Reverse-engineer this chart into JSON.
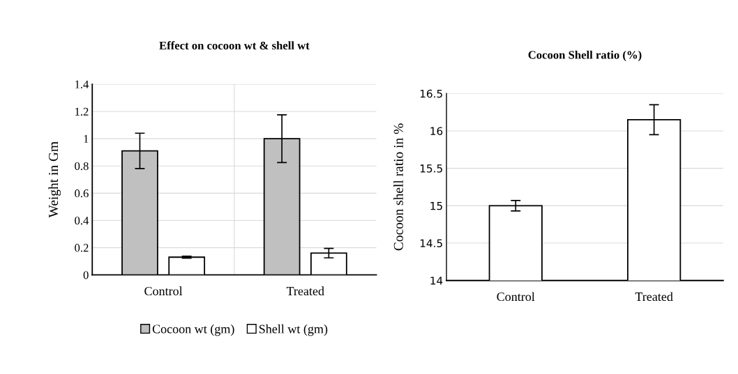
{
  "chart_data": [
    {
      "type": "bar",
      "title": "Effect on cocoon wt & shell wt",
      "ylabel": "Weight in Gm",
      "categories": [
        "Control",
        "Treated"
      ],
      "series": [
        {
          "name": "Cocoon wt (gm)",
          "color": "#c0c0c0",
          "values": [
            0.91,
            1.0
          ],
          "errors": [
            0.13,
            0.175
          ]
        },
        {
          "name": "Shell wt (gm)",
          "color": "#ffffff",
          "values": [
            0.13,
            0.16
          ],
          "errors": [
            0.007,
            0.035
          ]
        }
      ],
      "ylim": [
        0,
        1.4
      ],
      "yticks": [
        0,
        0.2,
        0.4,
        0.6,
        0.8,
        1,
        1.2,
        1.4
      ],
      "grid": true,
      "legend": "bottom"
    },
    {
      "type": "bar",
      "title": "Cocoon Shell ratio (%)",
      "ylabel": "Cocoon shell ratio in %",
      "categories": [
        "Control",
        "Treated"
      ],
      "series": [
        {
          "color": "#ffffff",
          "values": [
            15.0,
            16.15
          ],
          "errors": [
            0.07,
            0.2
          ]
        }
      ],
      "ylim": [
        14,
        16.5
      ],
      "yticks": [
        14,
        14.5,
        15,
        15.5,
        16,
        16.5
      ],
      "grid": "y"
    }
  ]
}
